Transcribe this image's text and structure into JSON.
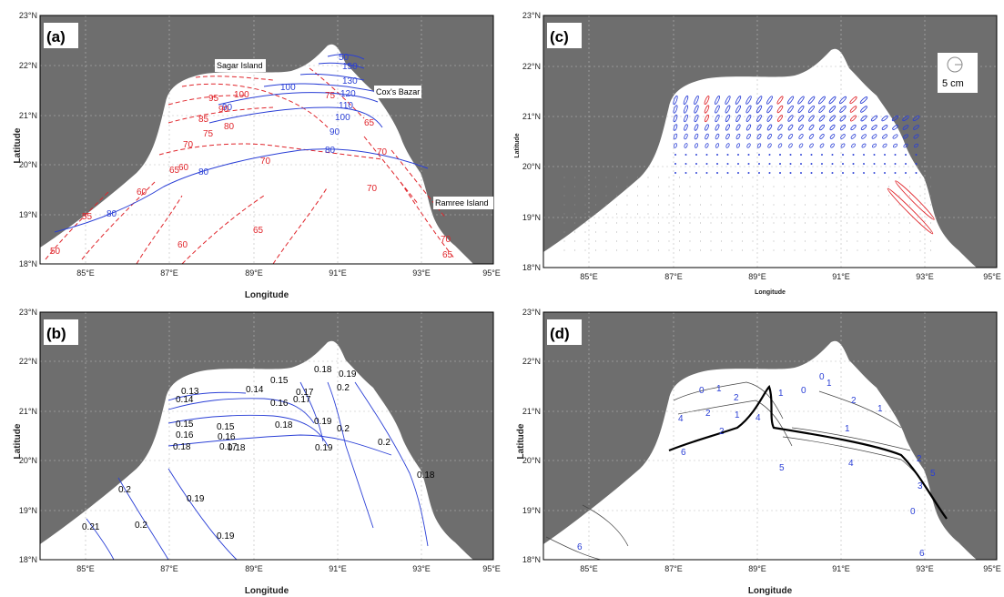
{
  "figure": {
    "panels": [
      {
        "id": "a",
        "tag": "(a)",
        "xlabel": "Longitude",
        "ylabel": "Latitude",
        "xticks": [
          "85°E",
          "87°E",
          "89°E",
          "91°E",
          "93°E",
          "95°E"
        ],
        "yticks": [
          "23°N",
          "22°N",
          "21°N",
          "20°N",
          "19°N",
          "18°N"
        ],
        "place_labels": [
          "Sagar Island",
          "Cox's Bazar",
          "Ramree Island"
        ],
        "blue_contour_labels": [
          "80",
          "80",
          "80",
          "90",
          "90",
          "100",
          "100",
          "110",
          "120",
          "130",
          "150",
          "50"
        ],
        "red_contour_labels": [
          "50",
          "55",
          "60",
          "60",
          "60",
          "65",
          "65",
          "65",
          "70",
          "70",
          "70",
          "70",
          "75",
          "75",
          "80",
          "85",
          "90",
          "95",
          "100",
          "70",
          "65"
        ]
      },
      {
        "id": "b",
        "tag": "(b)",
        "xlabel": "Longitude",
        "ylabel": "Latitude",
        "xticks": [
          "85°E",
          "87°E",
          "89°E",
          "91°E",
          "93°E",
          "95°E"
        ],
        "yticks": [
          "23°N",
          "22°N",
          "21°N",
          "20°N",
          "19°N",
          "18°N"
        ],
        "contour_labels": [
          "0.13",
          "0.14",
          "0.14",
          "0.15",
          "0.16",
          "0.17",
          "0.18",
          "0.19",
          "0.2",
          "0.15",
          "0.16",
          "0.15",
          "0.16",
          "0.17",
          "0.18",
          "0.17",
          "0.18",
          "0.18",
          "0.19",
          "0.2",
          "0.19",
          "0.2",
          "0.2",
          "0.19",
          "0.19",
          "0.2",
          "0.21",
          "0.18"
        ]
      },
      {
        "id": "c",
        "tag": "(c)",
        "xlabel": "Longitude",
        "ylabel": "Latitude",
        "xticks": [
          "85°E",
          "87°E",
          "89°E",
          "91°E",
          "93°E",
          "95°E"
        ],
        "yticks": [
          "23°N",
          "22°N",
          "21°N",
          "20°N",
          "19°N",
          "18°N"
        ],
        "scale_label": "5 cm"
      },
      {
        "id": "d",
        "tag": "(d)",
        "xlabel": "Longitude",
        "ylabel": "Latitude",
        "xticks": [
          "85°E",
          "87°E",
          "89°E",
          "91°E",
          "93°E",
          "95°E"
        ],
        "yticks": [
          "23°N",
          "22°N",
          "21°N",
          "20°N",
          "19°N",
          "18°N"
        ],
        "contour_labels": [
          "0",
          "1",
          "0",
          "2",
          "0",
          "1",
          "4",
          "2",
          "1",
          "2",
          "4",
          "1",
          "2",
          "1",
          "4",
          "5",
          "6",
          "5",
          "6",
          "2",
          "3",
          "1",
          "0",
          "6"
        ]
      }
    ],
    "colors": {
      "land": "#6e6e6e",
      "sea": "#ffffff",
      "blue_contour": "#2a3fd6",
      "red_contour": "#e0252b",
      "black_contour": "#000000"
    }
  }
}
